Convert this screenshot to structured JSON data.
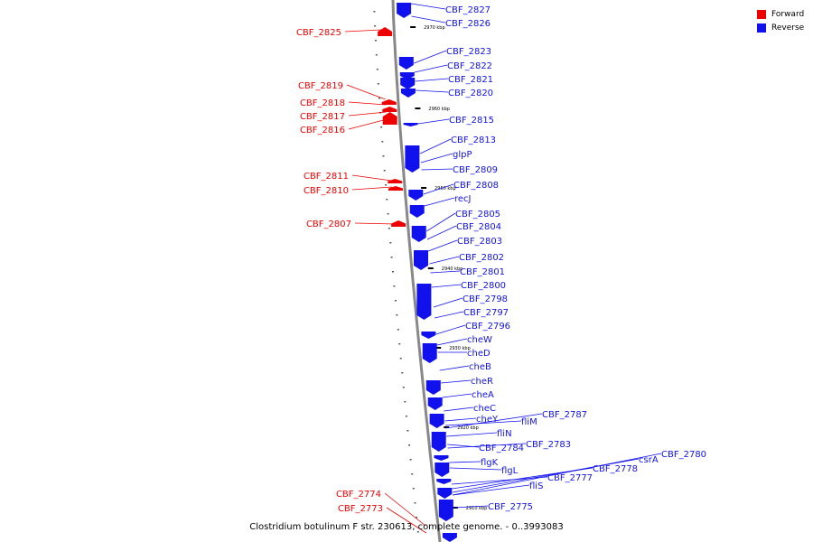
{
  "caption": "Clostridium botulinum F str. 230613, complete genome. - 0..3993083",
  "colors": {
    "forward": "#ee0000",
    "reverse": "#1111ee",
    "axis": "#888888"
  },
  "legend": [
    {
      "label": "Forward",
      "color": "#ee0000"
    },
    {
      "label": "Reverse",
      "color": "#1111ee"
    }
  ],
  "tick_labels": [
    "2970 kbp",
    "2960 kbp",
    "2950 kbp",
    "2940 kbp",
    "2930 kbp",
    "2920 kbp",
    "2910 kbp"
  ],
  "forward_genes": [
    "CBF_2825",
    "CBF_2819",
    "CBF_2818",
    "CBF_2817",
    "CBF_2816",
    "CBF_2811",
    "CBF_2810",
    "CBF_2807",
    "CBF_2774",
    "CBF_2773"
  ],
  "reverse_genes": [
    "CBF_2827",
    "CBF_2826",
    "CBF_2823",
    "CBF_2822",
    "CBF_2821",
    "CBF_2820",
    "CBF_2815",
    "CBF_2813",
    "glpP",
    "CBF_2809",
    "CBF_2808",
    "recJ",
    "CBF_2805",
    "CBF_2804",
    "CBF_2803",
    "CBF_2802",
    "CBF_2801",
    "CBF_2800",
    "CBF_2798",
    "CBF_2797",
    "CBF_2796",
    "cheW",
    "cheD",
    "cheB",
    "cheR",
    "cheA",
    "cheC",
    "cheY",
    "fliM",
    "CBF_2787",
    "fliN",
    "CBF_2784",
    "CBF_2783",
    "flgK",
    "flgL",
    "CBF_2777",
    "CBF_2778",
    "csrA",
    "CBF_2780",
    "fliS",
    "CBF_2775"
  ]
}
